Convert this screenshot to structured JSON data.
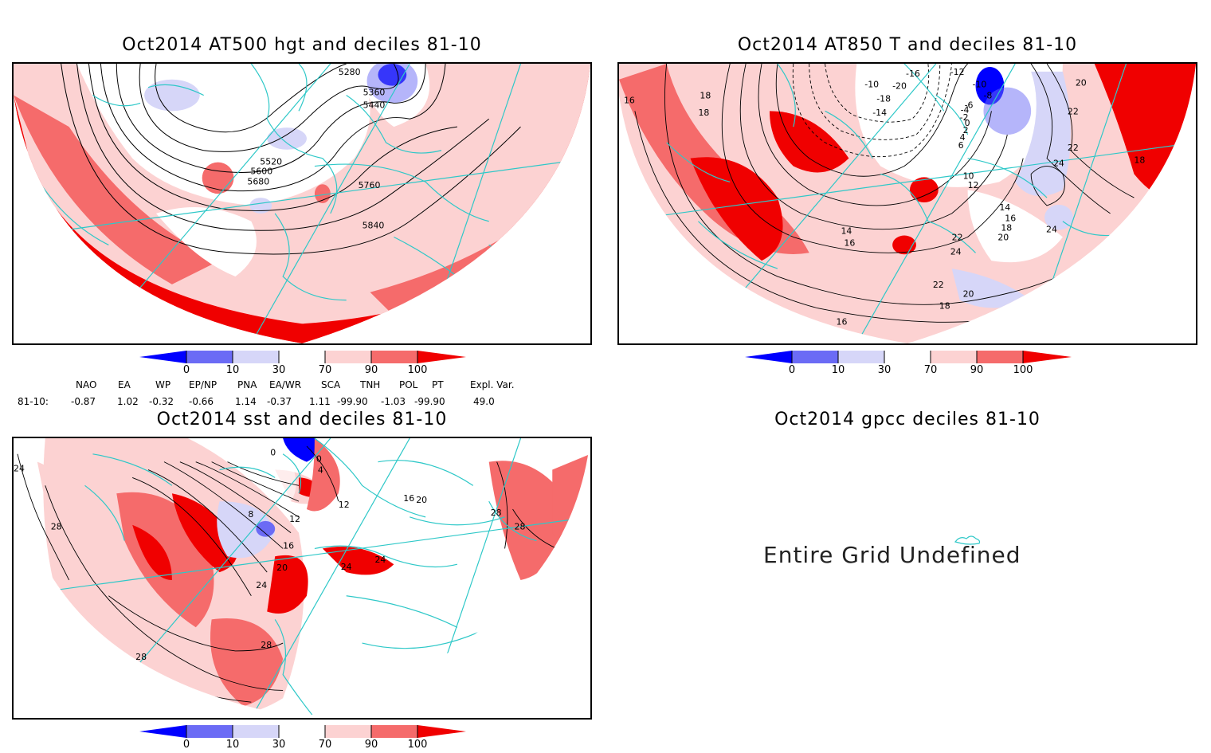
{
  "panels": {
    "p1_title": "Oct2014 AT500 hgt and deciles 81-10",
    "p2_title": "Oct2014 AT850 T and deciles 81-10",
    "p3_title": "Oct2014 sst and deciles 81-10",
    "p4_title": "Oct2014 gpcc deciles 81-10",
    "p4_message": "Entire Grid Undefined"
  },
  "colorbar": {
    "ticks": [
      "0",
      "10",
      "30",
      "70",
      "90",
      "100"
    ],
    "colors": [
      "#0000ff",
      "#6b6bf5",
      "#d6d6f8",
      "#ffffff",
      "#fcd2d2",
      "#f56b6b",
      "#f00000"
    ]
  },
  "contour_labels": {
    "p1": [
      "5280",
      "5360",
      "5440",
      "5520",
      "5600",
      "5680",
      "5760",
      "5840"
    ],
    "p2": [
      "-16",
      "-12",
      "-10",
      "-8",
      "-20",
      "-18",
      "-14",
      "-6",
      "-2",
      "-4",
      "0",
      "2",
      "4",
      "6",
      "10",
      "12",
      "14",
      "16",
      "18",
      "20",
      "22",
      "24"
    ],
    "p3": [
      "24",
      "28",
      "0",
      "4",
      "8",
      "12",
      "16",
      "20"
    ]
  },
  "indices": {
    "headers": [
      "NAO",
      "EA",
      "WP",
      "EP/NP",
      "PNA",
      "EA/WR",
      "SCA",
      "TNH",
      "POL",
      "PT",
      "Expl. Var."
    ],
    "row_label": "81-10:",
    "values": [
      "-0.87",
      "1.02",
      "-0.32",
      "-0.66",
      "1.14",
      "-0.37",
      "1.11",
      "-99.90",
      "-1.03",
      "-99.90",
      "49.0"
    ]
  }
}
